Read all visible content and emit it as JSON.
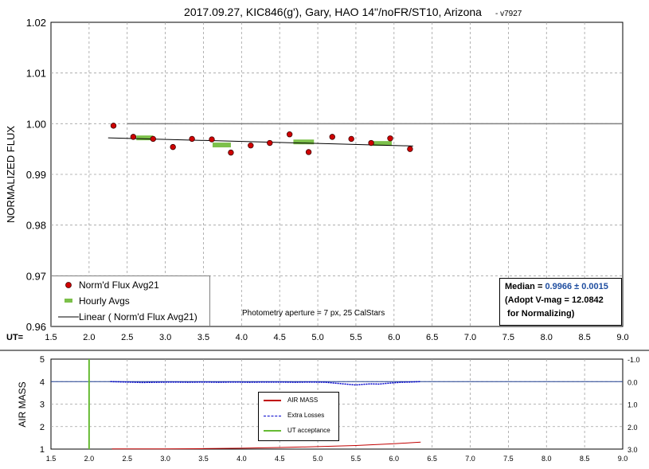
{
  "chart_data": [
    {
      "type": "scatter",
      "title": "2017.09.27, KIC846(g'), Gary, HAO 14\"/noFR/ST10, Arizona",
      "title_suffix": "- v7927",
      "ylabel": "NORMALIZED FLUX",
      "xlabel": "UT=",
      "xlim": [
        1.5,
        9.0
      ],
      "ylim": [
        0.96,
        1.02
      ],
      "x_ticks": [
        "1.5",
        "2.0",
        "2.5",
        "3.0",
        "3.5",
        "4.0",
        "4.5",
        "5.0",
        "5.5",
        "6.0",
        "6.5",
        "7.0",
        "7.5",
        "8.0",
        "8.5",
        "9.0"
      ],
      "y_ticks": [
        "0.96",
        "0.97",
        "0.98",
        "0.99",
        "1.00",
        "1.01",
        "1.02"
      ],
      "grid": true,
      "reference_line": {
        "y": 1.0,
        "x_from": 2.5,
        "x_to": 9.0
      },
      "series": [
        {
          "name": "Norm'd Flux Avg21",
          "kind": "points",
          "color": "#d00000",
          "x": [
            2.32,
            2.58,
            2.84,
            3.1,
            3.35,
            3.61,
            3.86,
            4.12,
            4.37,
            4.63,
            4.88,
            5.19,
            5.44,
            5.7,
            5.95,
            6.21
          ],
          "y": [
            0.9996,
            0.9974,
            0.997,
            0.9954,
            0.997,
            0.9969,
            0.9943,
            0.9957,
            0.9962,
            0.9979,
            0.9944,
            0.9974,
            0.997,
            0.9962,
            0.9971,
            0.995
          ]
        },
        {
          "name": "Hourly Avgs",
          "kind": "segments",
          "color": "#7cc04a",
          "segments": [
            {
              "x": [
                2.62,
                2.84
              ],
              "y": 0.9972
            },
            {
              "x": [
                3.62,
                3.86
              ],
              "y": 0.9958
            },
            {
              "x": [
                4.68,
                4.95
              ],
              "y": 0.9964
            },
            {
              "x": [
                5.72,
                5.97
              ],
              "y": 0.9961
            }
          ]
        },
        {
          "name": "Linear ( Norm'd Flux Avg21)",
          "kind": "line",
          "color": "#000000",
          "x": [
            2.25,
            6.25
          ],
          "y": [
            0.9972,
            0.9956
          ]
        }
      ],
      "legend_position": "bottom-left",
      "annotation": "Photometry aperture = 7 px, 25 CalStars",
      "median_box": {
        "label": "Median =",
        "value": "0.9966 ± 0.0015",
        "line2": "(Adopt V-mag = 12.0842",
        "line3": " for Normalizing)"
      }
    },
    {
      "type": "line",
      "ylabel": "AIR MASS",
      "xlim": [
        1.5,
        9.0
      ],
      "ylim": [
        1,
        5
      ],
      "y2lim": [
        3.0,
        -1.0
      ],
      "x_ticks": [
        "1.5",
        "2.0",
        "2.5",
        "3.0",
        "3.5",
        "4.0",
        "4.5",
        "5.0",
        "5.5",
        "6.0",
        "6.5",
        "7.0",
        "7.5",
        "8.0",
        "8.5",
        "9.0"
      ],
      "y_ticks": [
        "1",
        "2",
        "3",
        "4",
        "5"
      ],
      "y2_ticks": [
        "3.0",
        "2.0",
        "1.0",
        "0.0",
        "-1.0"
      ],
      "grid": true,
      "series": [
        {
          "name": "AIR MASS",
          "color": "#c00000",
          "x": [
            2.3,
            3.0,
            3.5,
            4.0,
            4.5,
            5.0,
            5.5,
            6.0,
            6.35
          ],
          "y": [
            1.01,
            1.01,
            1.02,
            1.04,
            1.07,
            1.11,
            1.16,
            1.24,
            1.31
          ]
        },
        {
          "name": "Extra Losses",
          "color": "#0000cc",
          "x": [
            2.28,
            2.5,
            2.7,
            2.9,
            3.1,
            3.3,
            3.5,
            3.7,
            3.9,
            4.1,
            4.3,
            4.5,
            4.7,
            4.9,
            5.1,
            5.2,
            5.3,
            5.4,
            5.5,
            5.6,
            5.7,
            5.8,
            5.9,
            6.0,
            6.1,
            6.2,
            6.35
          ],
          "y": [
            0.0,
            0.02,
            0.04,
            0.03,
            0.02,
            0.03,
            0.02,
            0.03,
            0.02,
            0.03,
            0.02,
            0.02,
            0.03,
            0.02,
            0.03,
            0.06,
            0.09,
            0.12,
            0.15,
            0.12,
            0.1,
            0.11,
            0.08,
            0.05,
            0.03,
            0.02,
            0.0
          ]
        },
        {
          "name": "UT acceptance",
          "color": "#66bb33",
          "x": [
            2.0,
            2.0
          ],
          "y": [
            1,
            5
          ]
        }
      ],
      "reference_line": {
        "y2": 0.0
      },
      "legend_position": "center"
    }
  ]
}
